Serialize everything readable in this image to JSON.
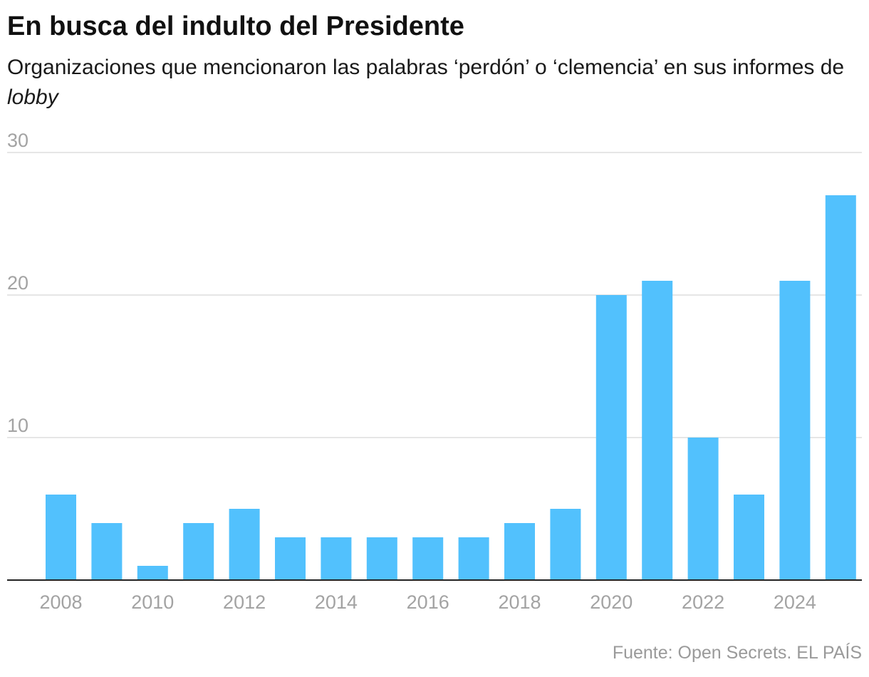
{
  "title": "En busca del indulto del Presidente",
  "subtitle_main": "Organizaciones que mencionaron las palabras ‘perdón’ o ‘clemencia’ en sus informes de ",
  "subtitle_italic": "lobby",
  "source": "Fuente: Open Secrets. EL PAÍS",
  "colors": {
    "bar": "#52c1fd",
    "grid": "#dedede",
    "axis": "#222222",
    "tick_label": "#a3a3a3"
  },
  "chart_data": {
    "type": "bar",
    "title": "En busca del indulto del Presidente",
    "categories": [
      "2008",
      "2009",
      "2010",
      "2011",
      "2012",
      "2013",
      "2014",
      "2015",
      "2016",
      "2017",
      "2018",
      "2019",
      "2020",
      "2021",
      "2022",
      "2023",
      "2024",
      "2025"
    ],
    "values": [
      6,
      4,
      1,
      4,
      5,
      3,
      3,
      3,
      3,
      3,
      4,
      5,
      20,
      21,
      10,
      6,
      21,
      27
    ],
    "x_tick_labels": [
      "2008",
      "2010",
      "2012",
      "2014",
      "2016",
      "2018",
      "2020",
      "2022",
      "2024"
    ],
    "y_tick_labels": [
      "10",
      "20",
      "30"
    ],
    "y_ticks": [
      10,
      20,
      30
    ],
    "ylim": [
      0,
      30
    ],
    "xlabel": "",
    "ylabel": "",
    "grid": true,
    "legend": "none"
  }
}
